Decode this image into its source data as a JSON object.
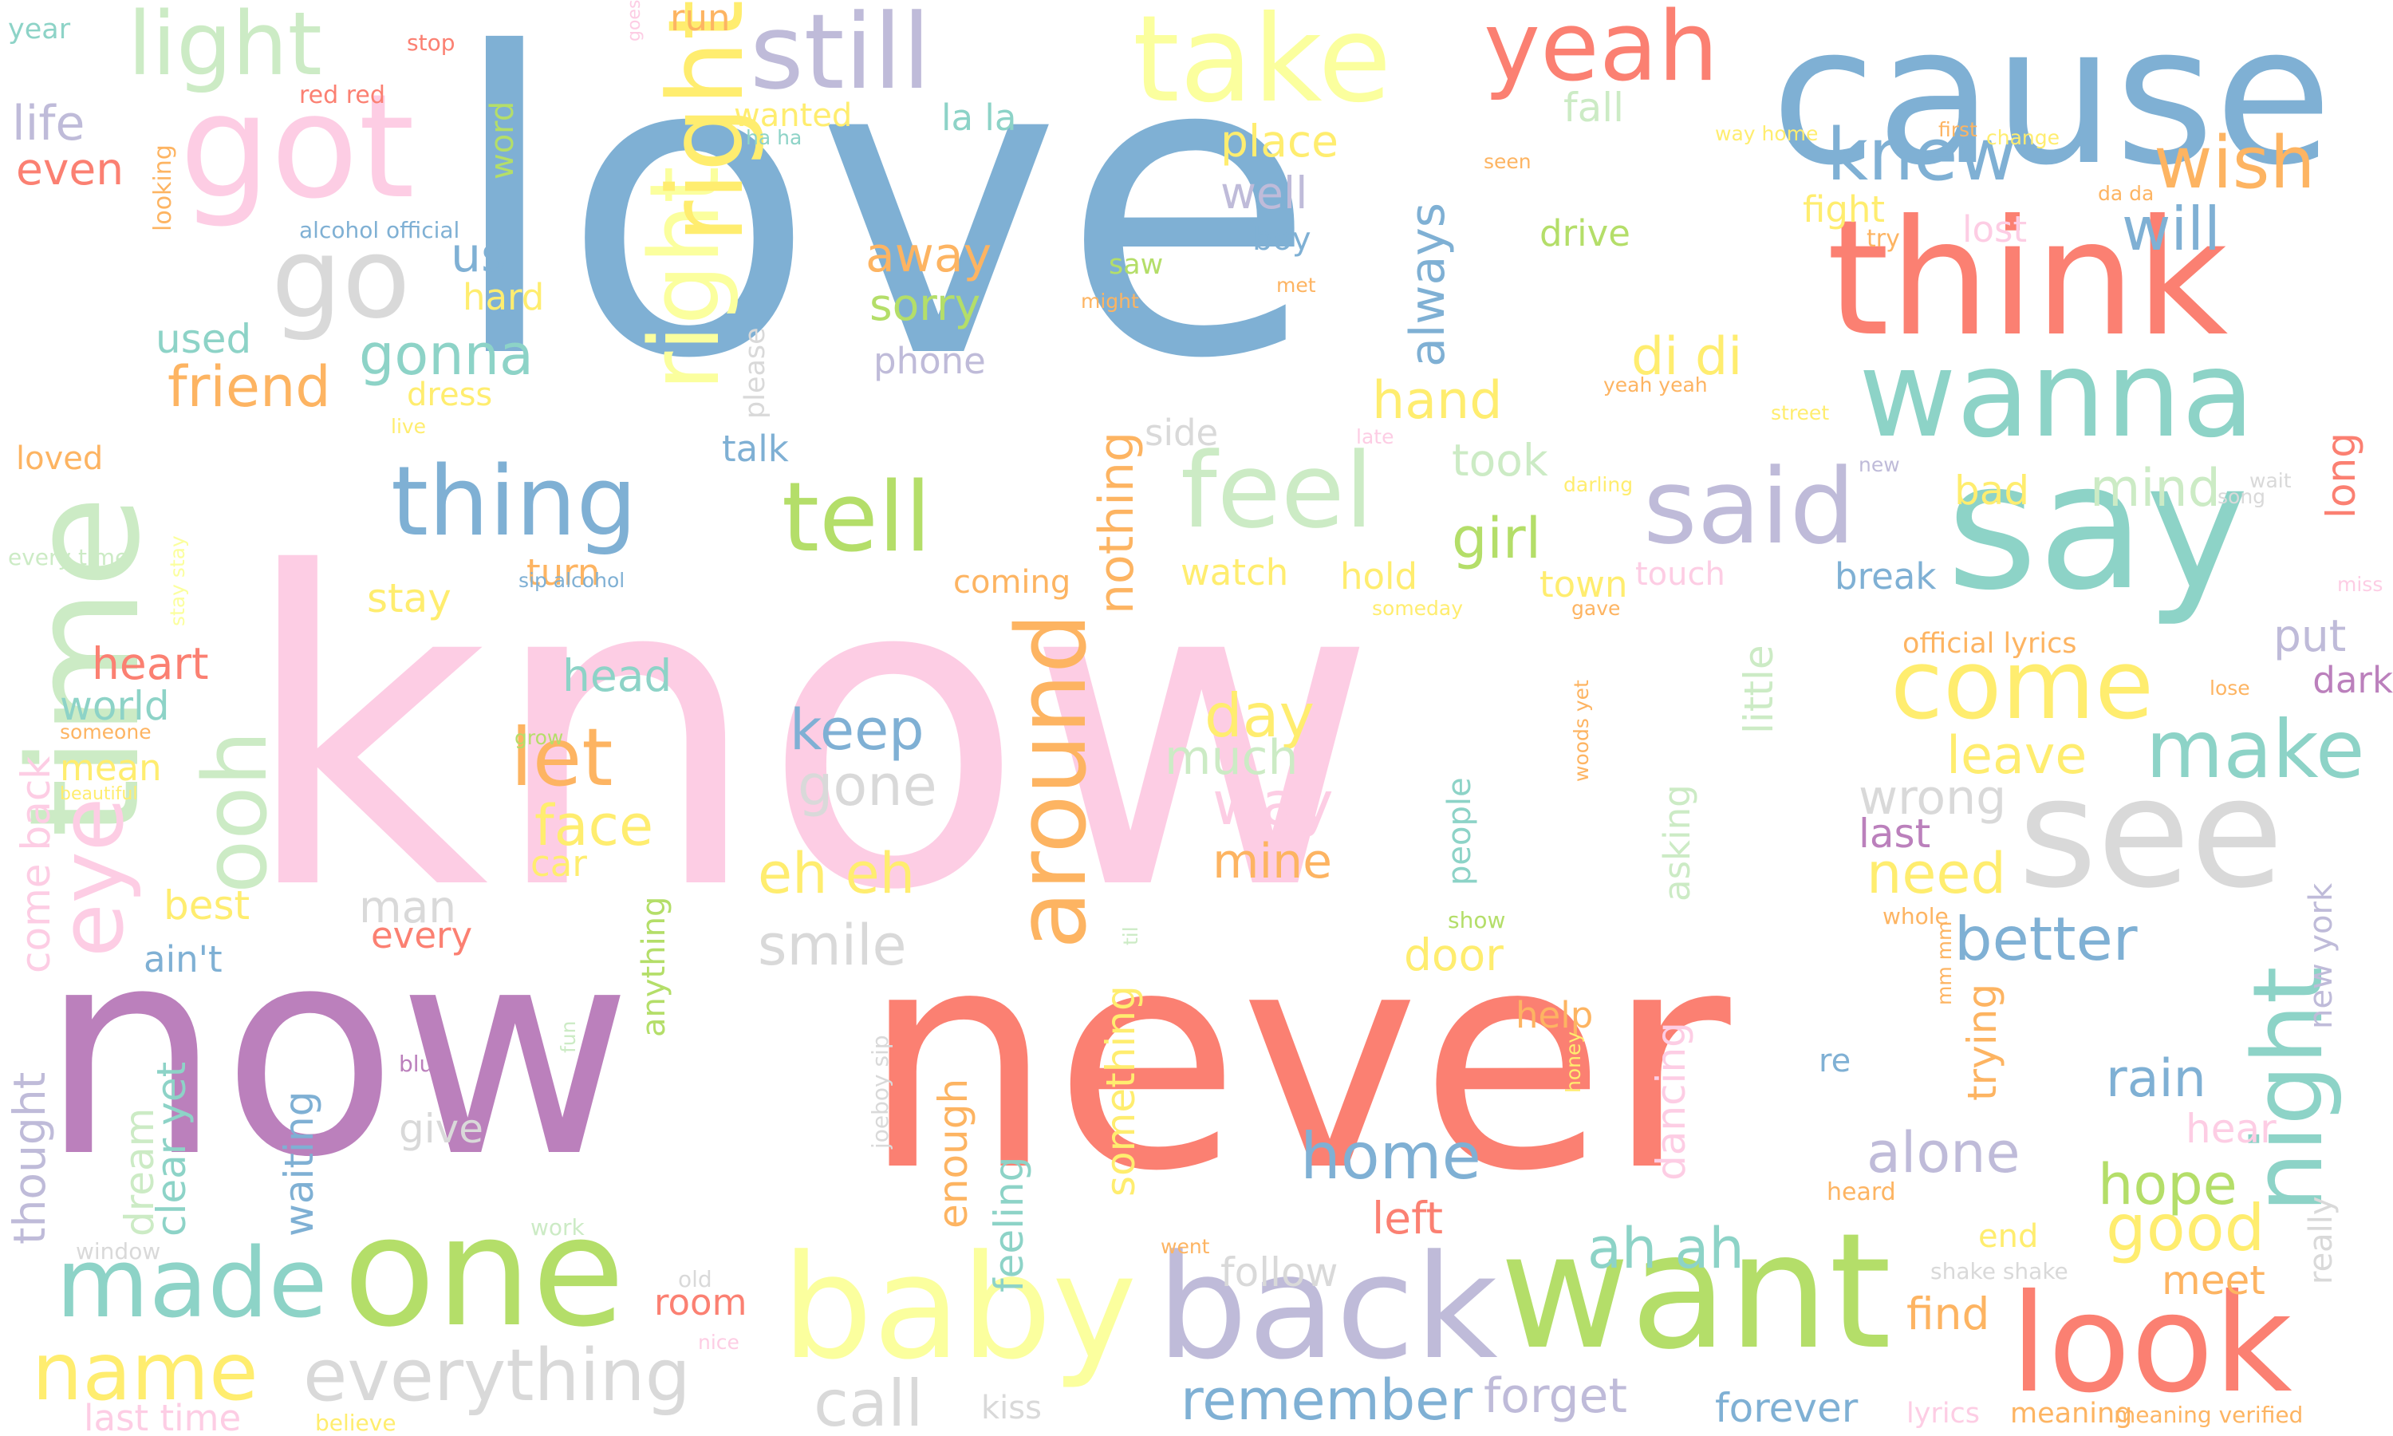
{
  "palette": [
    "#7fb0d4",
    "#fdcde4",
    "#bb80bc",
    "#fb8072",
    "#b4de69",
    "#fbff9e",
    "#8dd3c7",
    "#bfbbd9",
    "#d9d9d9",
    "#fdb462",
    "#ccebc5",
    "#ffed6f"
  ],
  "words": [
    "love",
    "know",
    "now",
    "never",
    "cause",
    "think",
    "say",
    "time",
    "got",
    "one",
    "want",
    "back",
    "baby",
    "look",
    "see",
    "wanna",
    "go",
    "take",
    "still",
    "light",
    "yeah",
    "right",
    "thing",
    "tell",
    "feel",
    "said",
    "knew",
    "wish",
    "will",
    "around",
    "come",
    "make",
    "night",
    "ooh",
    "eye",
    "made",
    "name",
    "everything",
    "call",
    "remember",
    "forget",
    "forever",
    "home",
    "let",
    "keep",
    "gone",
    "smile",
    "way",
    "day",
    "mine",
    "much",
    "face",
    "eh eh",
    "better",
    "need",
    "wrong",
    "last",
    "alone",
    "hope",
    "rain",
    "good",
    "ah ah",
    "left",
    "follow",
    "meet",
    "find",
    "help",
    "room",
    "thought",
    "come back",
    "dream",
    "waiting",
    "clear yet",
    "feeling",
    "enough",
    "something",
    "dancing",
    "asking",
    "trying",
    "new york",
    "really",
    "little",
    "people",
    "anything",
    "nothing",
    "always",
    "right",
    "gonna",
    "friend",
    "used",
    "us",
    "hard",
    "life",
    "even",
    "year",
    "red red",
    "word",
    "looking",
    "alcohol official",
    "stop",
    "run",
    "wanted",
    "la la",
    "ha ha",
    "fall",
    "place",
    "well",
    "boy",
    "drive",
    "away",
    "sorry",
    "saw",
    "might",
    "phone",
    "met",
    "please",
    "dress",
    "live",
    "side",
    "di di",
    "hand",
    "took",
    "late",
    "girl",
    "mind",
    "bad",
    "long",
    "lost",
    "try",
    "fight",
    "first",
    "way home",
    "seen",
    "change",
    "da da",
    "yeah yeah",
    "street",
    "new",
    "wait",
    "song",
    "darling",
    "touch",
    "break",
    "official lyrics",
    "put",
    "dark",
    "miss",
    "lose",
    "hold",
    "town",
    "someday",
    "gave",
    "woods yet",
    "coming",
    "watch",
    "turn",
    "stay",
    "sip alcohol",
    "every time",
    "stay stay",
    "loved",
    "talk",
    "heart",
    "head",
    "world",
    "someone",
    "grow",
    "mean",
    "beautiful",
    "best",
    "car",
    "man",
    "every",
    "door",
    "show",
    "whole",
    "mm mm",
    "til",
    "give",
    "blue",
    "fun",
    "honey",
    "re",
    "hear",
    "heard",
    "end",
    "shake shake",
    "went",
    "joeboy sip",
    "window",
    "work",
    "old",
    "nice",
    "last time",
    "believe",
    "kiss",
    "lyrics",
    "meaning",
    "meaning verified",
    "ain't",
    "leave",
    "goes"
  ]
}
